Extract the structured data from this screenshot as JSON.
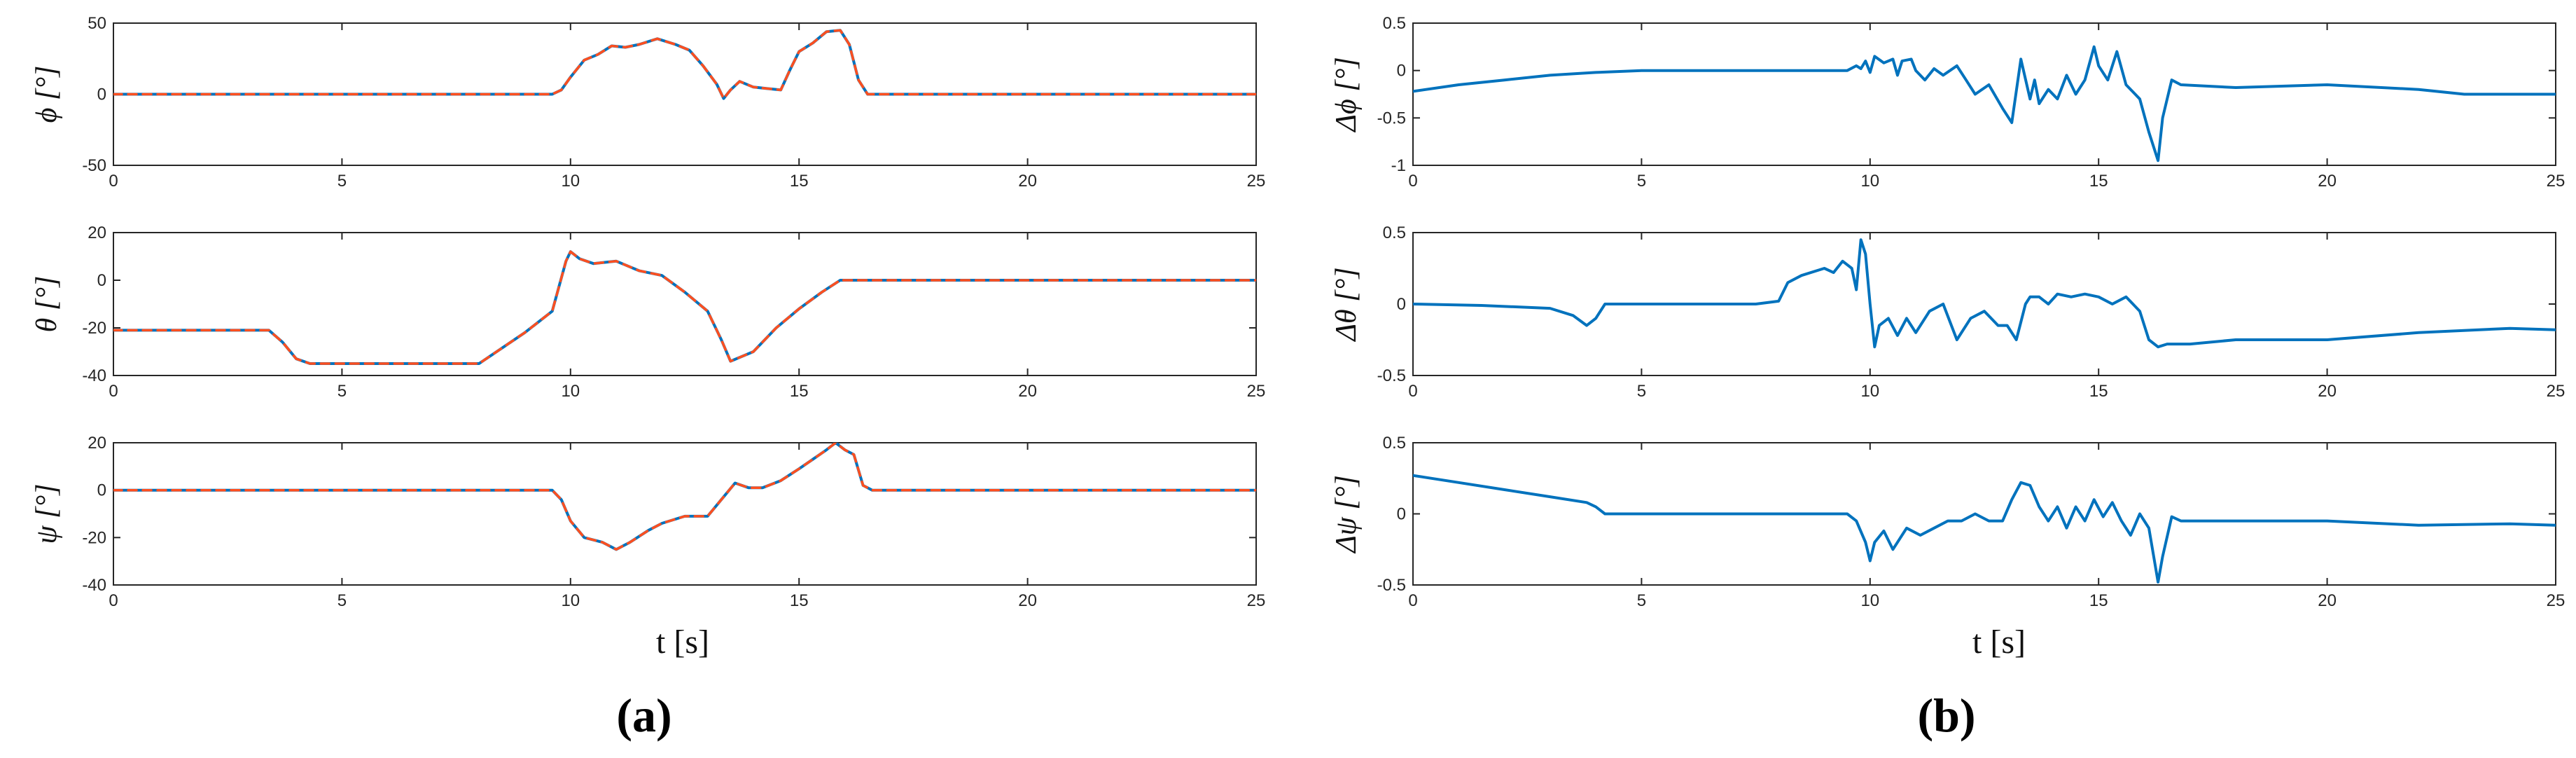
{
  "colors": {
    "measured": "#0072BD",
    "estimated": "#FF4F1F",
    "axis": "#262626"
  },
  "panels": [
    {
      "label": "(a)",
      "xlabel": "t [s]"
    },
    {
      "label": "(b)",
      "xlabel": "t [s]"
    }
  ],
  "chart_data": [
    {
      "type": "line",
      "panel": "a",
      "ylabel": "ϕ [°]",
      "xlim": [
        0,
        25
      ],
      "ylim": [
        -50,
        50
      ],
      "xticks": [
        0,
        5,
        10,
        15,
        20,
        25
      ],
      "yticks": [
        -50,
        0,
        50
      ],
      "series": [
        {
          "style": "solid",
          "color": "#0072BD",
          "x": [
            0,
            9.6,
            9.8,
            10,
            10.3,
            10.6,
            10.9,
            11.2,
            11.5,
            11.9,
            12.3,
            12.6,
            12.9,
            13.2,
            13.35,
            13.5,
            13.7,
            14.0,
            14.3,
            14.6,
            14.8,
            15.0,
            15.3,
            15.6,
            15.9,
            16.1,
            16.3,
            16.5,
            16.7,
            25
          ],
          "y": [
            0,
            0,
            3,
            12,
            24,
            28,
            34,
            33,
            35,
            39,
            35,
            31,
            20,
            7,
            -3,
            3,
            9,
            5,
            4,
            3,
            17,
            30,
            36,
            44,
            45,
            35,
            10,
            0,
            0,
            0
          ]
        },
        {
          "style": "dashed",
          "color": "#FF4F1F",
          "x": [
            0,
            9.6,
            9.8,
            10,
            10.3,
            10.6,
            10.9,
            11.2,
            11.5,
            11.9,
            12.3,
            12.6,
            12.9,
            13.2,
            13.35,
            13.5,
            13.7,
            14.0,
            14.3,
            14.6,
            14.8,
            15.0,
            15.3,
            15.6,
            15.9,
            16.1,
            16.3,
            16.5,
            16.7,
            25
          ],
          "y": [
            0,
            0,
            3,
            12,
            24,
            28,
            34,
            33,
            35,
            39,
            35,
            31,
            20,
            7,
            -3,
            3,
            9,
            5,
            4,
            3,
            17,
            30,
            36,
            44,
            45,
            35,
            10,
            0,
            0,
            0
          ]
        }
      ]
    },
    {
      "type": "line",
      "panel": "a",
      "ylabel": "θ [°]",
      "xlim": [
        0,
        25
      ],
      "ylim": [
        -40,
        20
      ],
      "xticks": [
        0,
        5,
        10,
        15,
        20,
        25
      ],
      "yticks": [
        -40,
        -20,
        0,
        20
      ],
      "series": [
        {
          "style": "solid",
          "color": "#0072BD",
          "x": [
            0,
            3.4,
            3.7,
            4.0,
            4.3,
            8.0,
            9.0,
            9.6,
            9.9,
            10.0,
            10.2,
            10.5,
            11.0,
            11.5,
            12.0,
            12.5,
            13.0,
            13.3,
            13.5,
            14.0,
            14.5,
            15.0,
            15.5,
            15.9,
            16.2,
            25
          ],
          "y": [
            -21,
            -21,
            -26,
            -33,
            -35,
            -35,
            -22,
            -13,
            8,
            12,
            9,
            7,
            8,
            4,
            2,
            -5,
            -13,
            -25,
            -34,
            -30,
            -20,
            -12,
            -5,
            0,
            0,
            0
          ]
        },
        {
          "style": "dashed",
          "color": "#FF4F1F",
          "x": [
            0,
            3.4,
            3.7,
            4.0,
            4.3,
            8.0,
            9.0,
            9.6,
            9.9,
            10.0,
            10.2,
            10.5,
            11.0,
            11.5,
            12.0,
            12.5,
            13.0,
            13.3,
            13.5,
            14.0,
            14.5,
            15.0,
            15.5,
            15.9,
            16.2,
            25
          ],
          "y": [
            -21,
            -21,
            -26,
            -33,
            -35,
            -35,
            -22,
            -13,
            8,
            12,
            9,
            7,
            8,
            4,
            2,
            -5,
            -13,
            -25,
            -34,
            -30,
            -20,
            -12,
            -5,
            0,
            0,
            0
          ]
        }
      ]
    },
    {
      "type": "line",
      "panel": "a",
      "ylabel": "ψ [°]",
      "xlim": [
        0,
        25
      ],
      "ylim": [
        -40,
        20
      ],
      "xticks": [
        0,
        5,
        10,
        15,
        20,
        25
      ],
      "yticks": [
        -40,
        -20,
        0,
        20
      ],
      "series": [
        {
          "style": "solid",
          "color": "#0072BD",
          "x": [
            0,
            9.6,
            9.8,
            10.0,
            10.3,
            10.7,
            11.0,
            11.3,
            11.7,
            12.0,
            12.5,
            13.0,
            13.3,
            13.6,
            13.9,
            14.2,
            14.6,
            15.0,
            15.3,
            15.6,
            15.8,
            16.0,
            16.2,
            16.4,
            16.6,
            25
          ],
          "y": [
            0,
            0,
            -4,
            -13,
            -20,
            -22,
            -25,
            -22,
            -17,
            -14,
            -11,
            -11,
            -4,
            3,
            1,
            1,
            4,
            9,
            13,
            17,
            20,
            17,
            15,
            2,
            0,
            0
          ]
        },
        {
          "style": "dashed",
          "color": "#FF4F1F",
          "x": [
            0,
            9.6,
            9.8,
            10.0,
            10.3,
            10.7,
            11.0,
            11.3,
            11.7,
            12.0,
            12.5,
            13.0,
            13.3,
            13.6,
            13.9,
            14.2,
            14.6,
            15.0,
            15.3,
            15.6,
            15.8,
            16.0,
            16.2,
            16.4,
            16.6,
            25
          ],
          "y": [
            0,
            0,
            -4,
            -13,
            -20,
            -22,
            -25,
            -22,
            -17,
            -14,
            -11,
            -11,
            -4,
            3,
            1,
            1,
            4,
            9,
            13,
            17,
            20,
            17,
            15,
            2,
            0,
            0
          ]
        }
      ]
    },
    {
      "type": "line",
      "panel": "b",
      "ylabel": "Δϕ [°]",
      "xlim": [
        0,
        25
      ],
      "ylim": [
        -1,
        0.5
      ],
      "xticks": [
        0,
        5,
        10,
        15,
        20,
        25
      ],
      "yticks": [
        -1,
        -0.5,
        0,
        0.5
      ],
      "series": [
        {
          "style": "solid",
          "color": "#0072BD",
          "x": [
            0,
            1,
            2,
            3,
            4,
            5,
            7,
            9.5,
            9.7,
            9.8,
            9.9,
            10.0,
            10.1,
            10.3,
            10.5,
            10.6,
            10.7,
            10.9,
            11.0,
            11.2,
            11.4,
            11.6,
            11.9,
            12.1,
            12.3,
            12.6,
            12.9,
            13.1,
            13.3,
            13.5,
            13.6,
            13.7,
            13.9,
            14.1,
            14.3,
            14.5,
            14.7,
            14.9,
            15.0,
            15.2,
            15.4,
            15.6,
            15.9,
            16.1,
            16.3,
            16.4,
            16.6,
            16.8,
            18,
            20,
            22,
            23,
            25
          ],
          "y": [
            -0.22,
            -0.15,
            -0.1,
            -0.05,
            -0.02,
            0,
            0,
            0,
            0.05,
            0.02,
            0.1,
            -0.02,
            0.15,
            0.08,
            0.12,
            -0.05,
            0.1,
            0.12,
            0.0,
            -0.1,
            0.02,
            -0.05,
            0.05,
            -0.1,
            -0.25,
            -0.15,
            -0.4,
            -0.55,
            0.12,
            -0.3,
            -0.1,
            -0.35,
            -0.2,
            -0.3,
            -0.05,
            -0.25,
            -0.1,
            0.25,
            0.05,
            -0.1,
            0.2,
            -0.15,
            -0.3,
            -0.65,
            -0.95,
            -0.5,
            -0.1,
            -0.15,
            -0.18,
            -0.15,
            -0.2,
            -0.25,
            -0.25
          ]
        }
      ]
    },
    {
      "type": "line",
      "panel": "b",
      "ylabel": "Δθ [°]",
      "xlim": [
        0,
        25
      ],
      "ylim": [
        -0.5,
        0.5
      ],
      "xticks": [
        0,
        5,
        10,
        15,
        20,
        25
      ],
      "yticks": [
        -0.5,
        0,
        0.5
      ],
      "series": [
        {
          "style": "solid",
          "color": "#0072BD",
          "x": [
            0,
            1.5,
            3.0,
            3.5,
            3.8,
            4.0,
            4.2,
            5.0,
            7.5,
            8.0,
            8.2,
            8.5,
            9.0,
            9.2,
            9.4,
            9.6,
            9.7,
            9.8,
            9.9,
            10.0,
            10.1,
            10.2,
            10.4,
            10.6,
            10.8,
            11.0,
            11.3,
            11.6,
            11.9,
            12.2,
            12.5,
            12.8,
            13.0,
            13.2,
            13.4,
            13.5,
            13.7,
            13.9,
            14.1,
            14.4,
            14.7,
            15.0,
            15.3,
            15.6,
            15.9,
            16.1,
            16.3,
            16.5,
            17,
            18,
            20,
            22,
            24,
            25
          ],
          "y": [
            0,
            -0.01,
            -0.03,
            -0.08,
            -0.15,
            -0.1,
            0.0,
            0.0,
            0.0,
            0.02,
            0.15,
            0.2,
            0.25,
            0.22,
            0.3,
            0.25,
            0.1,
            0.45,
            0.35,
            0.0,
            -0.3,
            -0.15,
            -0.1,
            -0.22,
            -0.1,
            -0.2,
            -0.05,
            0.0,
            -0.25,
            -0.1,
            -0.05,
            -0.15,
            -0.15,
            -0.25,
            0.0,
            0.05,
            0.05,
            0.0,
            0.07,
            0.05,
            0.07,
            0.05,
            0.0,
            0.05,
            -0.05,
            -0.25,
            -0.3,
            -0.28,
            -0.28,
            -0.25,
            -0.25,
            -0.2,
            -0.17,
            -0.18
          ]
        }
      ]
    },
    {
      "type": "line",
      "panel": "b",
      "ylabel": "Δψ [°]",
      "xlim": [
        0,
        25
      ],
      "ylim": [
        -0.5,
        0.5
      ],
      "xticks": [
        0,
        5,
        10,
        15,
        20,
        25
      ],
      "yticks": [
        -0.5,
        0,
        0.5
      ],
      "series": [
        {
          "style": "solid",
          "color": "#0072BD",
          "x": [
            0,
            1,
            2,
            3,
            3.8,
            4.0,
            4.2,
            5,
            9.5,
            9.7,
            9.9,
            10.0,
            10.1,
            10.3,
            10.5,
            10.8,
            11.1,
            11.4,
            11.7,
            12.0,
            12.3,
            12.6,
            12.9,
            13.1,
            13.3,
            13.5,
            13.7,
            13.9,
            14.1,
            14.3,
            14.5,
            14.7,
            14.9,
            15.1,
            15.3,
            15.5,
            15.7,
            15.9,
            16.1,
            16.3,
            16.4,
            16.6,
            16.8,
            18,
            20,
            22,
            24,
            25
          ],
          "y": [
            0.27,
            0.22,
            0.17,
            0.12,
            0.08,
            0.05,
            0.0,
            0.0,
            0.0,
            -0.05,
            -0.2,
            -0.33,
            -0.2,
            -0.12,
            -0.25,
            -0.1,
            -0.15,
            -0.1,
            -0.05,
            -0.05,
            0.0,
            -0.05,
            -0.05,
            0.1,
            0.22,
            0.2,
            0.05,
            -0.05,
            0.05,
            -0.1,
            0.05,
            -0.05,
            0.1,
            -0.02,
            0.08,
            -0.05,
            -0.15,
            0.0,
            -0.1,
            -0.48,
            -0.3,
            -0.02,
            -0.05,
            -0.05,
            -0.05,
            -0.08,
            -0.07,
            -0.08
          ]
        }
      ]
    }
  ]
}
